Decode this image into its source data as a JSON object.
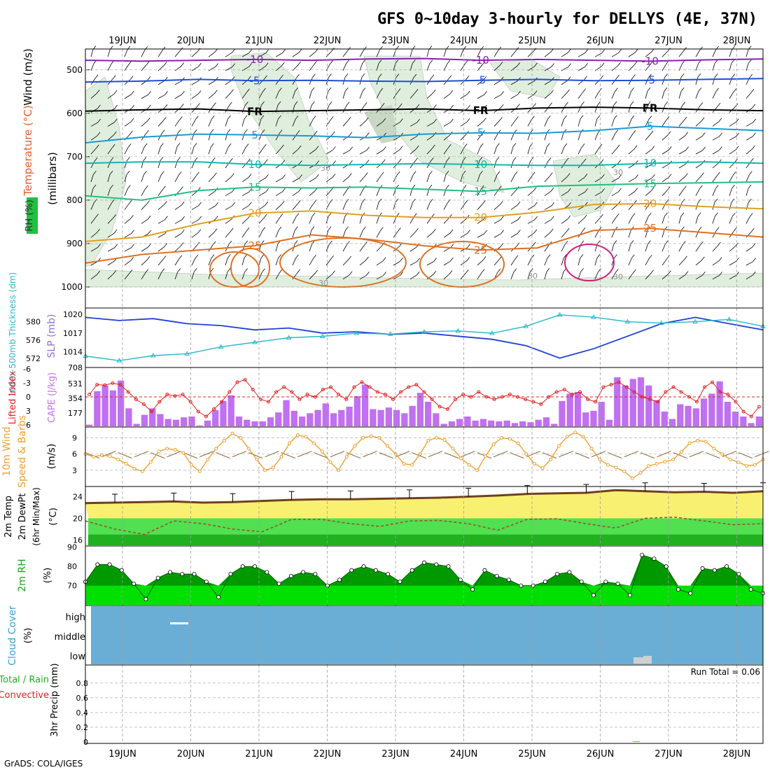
{
  "title": "GFS 0~10day 3-hourly for DELLYS (4E, 37N)",
  "credit": "GrADS: COLA/IGES",
  "dates": [
    "19JUN",
    "20JUN",
    "21JUN",
    "22JUN",
    "23JUN",
    "24JUN",
    "25JUN",
    "26JUN",
    "27JUN",
    "28JUN"
  ],
  "colors": {
    "grid": "#a0a0a0",
    "slp": "#1f3fd6",
    "thickness": "#27b8c8",
    "cape": "#c070f0",
    "lifted": "#e02020",
    "wind_speed": "#f0a030",
    "barb": "#8a6a40",
    "temp_fill": "#f8f070",
    "temp_line": "#704020",
    "dew_fill": "#50e050",
    "dew_dark": "#20b020",
    "rh_light": "#00e000",
    "rh_dark": "#009a00",
    "cloud_bg": "#6aaed6",
    "precip": "#20c020"
  },
  "panels": {
    "upper": {
      "label_wind": "Wind (m/s)",
      "label_temp": "Temperature (°C)",
      "label_rh": "RH (%)",
      "ylabel": "(millibars)",
      "levels": [
        "500",
        "600",
        "700",
        "800",
        "900",
        "1000"
      ],
      "contours": [
        {
          "label": "-10",
          "color": "#8a1fb0",
          "values": [
            478,
            480,
            478,
            476,
            478,
            475,
            474,
            478,
            476,
            478,
            480,
            477,
            475
          ]
        },
        {
          "label": "-5",
          "color": "#1f4fd6",
          "values": [
            528,
            526,
            522,
            525,
            524,
            526,
            527,
            524,
            522,
            525,
            524,
            522,
            520
          ]
        },
        {
          "label": "FR",
          "color": "#000000",
          "values": [
            595,
            592,
            590,
            596,
            594,
            592,
            590,
            594,
            588,
            586,
            588,
            592,
            594
          ]
        },
        {
          "label": "5",
          "color": "#1a9ad6",
          "values": [
            668,
            655,
            648,
            650,
            652,
            656,
            648,
            645,
            646,
            640,
            630,
            635,
            640
          ]
        },
        {
          "label": "10",
          "color": "#10b8b0",
          "values": [
            715,
            712,
            712,
            718,
            720,
            718,
            716,
            718,
            720,
            720,
            715,
            712,
            715
          ]
        },
        {
          "label": "15",
          "color": "#20c080",
          "values": [
            790,
            800,
            778,
            770,
            772,
            770,
            775,
            780,
            768,
            765,
            762,
            760,
            758
          ]
        },
        {
          "label": "20",
          "color": "#e0a020",
          "values": [
            895,
            885,
            855,
            830,
            825,
            835,
            840,
            840,
            828,
            810,
            808,
            815,
            820
          ]
        },
        {
          "label": "25",
          "color": "#e07020",
          "values": [
            945,
            925,
            915,
            905,
            880,
            890,
            905,
            915,
            910,
            870,
            865,
            875,
            885
          ]
        }
      ],
      "rh_labels": [
        "30",
        "30",
        "30",
        "30",
        "30"
      ]
    },
    "slp": {
      "label_thick": "1000~500mb Thickness (dm)",
      "label_slp": "SLP (mb)",
      "thick_ticks": [
        "580",
        "576",
        "572"
      ],
      "slp_ticks": [
        "1020",
        "1017",
        "1014",
        "708"
      ]
    },
    "cape": {
      "label_li": "Lifted Index",
      "label_cape": "CAPE (J/kg)",
      "li_ticks": [
        "-6",
        "-3",
        "0",
        "3",
        "6"
      ],
      "cape_ticks": [
        "531",
        "354",
        "177"
      ]
    },
    "wind": {
      "label_title": "10m Wind",
      "label_sub": "Speed & Barbs",
      "unit": "(m/s)",
      "ticks": [
        "9",
        "6",
        "3"
      ]
    },
    "temp": {
      "label_t": "2m Temp",
      "label_d": "2m DewPt",
      "label_m": "(6hr Min/Max)",
      "unit": "(°C)",
      "ticks": [
        "24",
        "20",
        "16"
      ]
    },
    "rh": {
      "label": "2m RH",
      "unit": "(%)",
      "ticks": [
        "90",
        "80",
        "70"
      ]
    },
    "cloud": {
      "label": "Cloud Cover",
      "unit": "(%)",
      "levels": [
        "high",
        "middle",
        "low"
      ]
    },
    "precip": {
      "label_a": "Total / Rain",
      "label_b": "Convective",
      "label_c": "3hr Precip (mm)",
      "ticks": [
        "0.8",
        "0.6",
        "0.4",
        "0.2",
        "0"
      ],
      "run_total": "Run Total = 0.06"
    }
  },
  "chart_data": [
    {
      "type": "line",
      "name": "SLP",
      "x_days": [
        0,
        0.5,
        1,
        1.5,
        2,
        2.5,
        3,
        3.5,
        4,
        4.5,
        5,
        5.5,
        6,
        6.5,
        7,
        7.5,
        8,
        8.5,
        9,
        9.5,
        10
      ],
      "series": [
        {
          "name": "SLP (mb)",
          "values": [
            1019.5,
            1019,
            1019.3,
            1018.5,
            1018.2,
            1017.5,
            1017.8,
            1017,
            1017.2,
            1016.8,
            1017,
            1016.5,
            1016,
            1015,
            1013,
            1014.5,
            1016.5,
            1018.5,
            1019.5,
            1018.5,
            1017.5
          ]
        },
        {
          "name": "Thickness (dm)",
          "values": [
            572.5,
            571.5,
            572.6,
            573,
            574.5,
            575.5,
            576.5,
            576.8,
            577.5,
            577.3,
            577.8,
            578,
            577.5,
            579,
            581.5,
            581,
            580,
            579.7,
            580,
            580.5,
            579
          ]
        }
      ]
    },
    {
      "type": "bar",
      "name": "CAPE",
      "values": [
        20,
        430,
        500,
        440,
        560,
        220,
        30,
        140,
        220,
        150,
        90,
        80,
        110,
        120,
        10,
        70,
        200,
        310,
        380,
        120,
        80,
        60,
        60,
        110,
        170,
        320,
        190,
        120,
        160,
        200,
        280,
        160,
        200,
        240,
        370,
        510,
        210,
        200,
        230,
        200,
        160,
        250,
        410,
        300,
        160,
        30,
        60,
        90,
        120,
        70,
        90,
        70,
        60,
        70,
        40,
        60,
        50,
        80,
        110,
        30,
        310,
        400,
        420,
        170,
        190,
        300,
        80,
        730,
        500,
        580,
        620,
        500,
        320,
        180,
        90,
        270,
        250,
        220,
        340,
        400,
        550,
        300,
        180,
        120,
        40,
        120
      ],
      "li_values": [
        -0.5,
        -2.5,
        -2.4,
        -2.8,
        -2.5,
        -1,
        0.5,
        1.5,
        3,
        1,
        -0.5,
        -0.2,
        -0.5,
        1,
        3,
        4,
        2.5,
        1,
        -1,
        -3,
        -3.5,
        -1.5,
        0.5,
        1,
        -1,
        -2,
        -1,
        0.5,
        -0.5,
        0,
        -1.5,
        -2,
        -0.5,
        0.5,
        -2,
        -3,
        -2,
        -1,
        -0.5,
        0.5,
        -1,
        -2,
        -2.5,
        -1,
        0.5,
        2,
        2.5,
        0.5,
        -0.5,
        0,
        -1,
        0,
        0.5,
        0,
        -0.5,
        0,
        0.5,
        1,
        1.5,
        0,
        -1,
        -1.5,
        -0.5,
        -1,
        0.5,
        1,
        -2,
        -2.5,
        -3,
        -2,
        -1,
        0,
        0.5,
        1,
        -1,
        -2,
        -1,
        0,
        1,
        -2,
        -3,
        -1,
        -0.5,
        1,
        3,
        4,
        2
      ]
    },
    {
      "type": "line",
      "name": "10m Wind Speed",
      "values": [
        6,
        5.5,
        5.8,
        5.6,
        5,
        4.2,
        3.3,
        2.8,
        4.5,
        6.5,
        7,
        6.8,
        6.2,
        4,
        2.8,
        5,
        7,
        8.5,
        9.8,
        9,
        7,
        5,
        3,
        3.5,
        5.5,
        8,
        9.5,
        9.2,
        8,
        6.5,
        4.5,
        3,
        5.5,
        7.5,
        9,
        9.3,
        9,
        7.5,
        6,
        4.2,
        4,
        6,
        8.5,
        9,
        8.6,
        7,
        5.2,
        4,
        3,
        5.6,
        7.8,
        9,
        8.8,
        8,
        6,
        4.2,
        3.4,
        5,
        7.5,
        9.2,
        10,
        9.2,
        7,
        5,
        4,
        3.5,
        2.8,
        1.5,
        2.5,
        3.8,
        4.2,
        4.6,
        5,
        6.4,
        8,
        8.5,
        8.3,
        7,
        6,
        5,
        4.5,
        3.8,
        4,
        5
      ]
    },
    {
      "type": "area",
      "name": "2m Temp / DewPt",
      "temp": [
        22.8,
        22.9,
        23,
        23.1,
        22.9,
        23,
        23.2,
        23.4,
        23.5,
        23.5,
        23.6,
        23.7,
        23.8,
        24,
        24.2,
        24.5,
        24.6,
        24.7,
        25.2,
        25,
        24.8,
        24.9,
        24.7,
        25
      ],
      "dew": [
        19.5,
        18,
        17,
        19.5,
        19,
        18,
        17.5,
        19.8,
        19.8,
        19,
        18.5,
        19.5,
        19.6,
        19,
        17.8,
        19.8,
        19.9,
        19,
        18.2,
        20,
        20.2,
        19.5,
        18.8,
        19
      ]
    },
    {
      "type": "area",
      "name": "2m RH",
      "values": [
        72,
        81,
        81,
        78,
        71,
        63,
        74,
        77,
        76,
        76,
        72,
        64,
        76,
        80,
        80,
        77,
        71,
        75,
        77,
        76,
        70,
        73,
        78,
        80,
        78,
        76,
        72,
        78,
        82,
        81,
        80,
        73,
        68,
        78,
        75,
        73,
        70,
        70,
        72,
        76,
        77,
        72,
        65,
        72,
        71,
        65,
        86,
        84,
        80,
        68,
        66,
        79,
        78,
        80,
        76,
        68,
        66
      ]
    },
    {
      "type": "bar",
      "name": "3hr Precip",
      "values_mm": [
        0.06
      ],
      "at_day": 7.5
    }
  ]
}
